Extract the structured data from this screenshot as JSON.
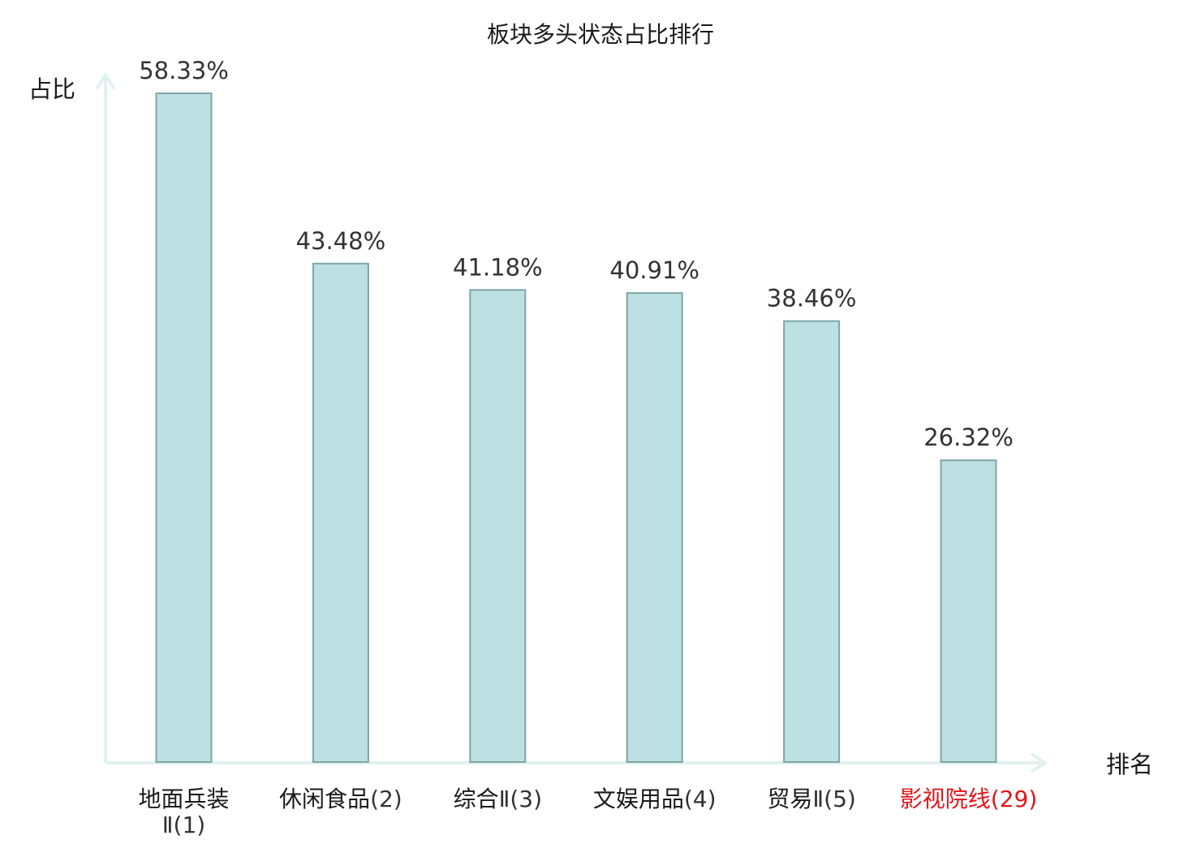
{
  "chart_data": {
    "type": "bar",
    "title": "板块多头状态占比排行",
    "ylabel": "占比",
    "xlabel": "排名",
    "ylim": [
      0,
      60
    ],
    "grid": false,
    "bar_color": "#bde0e2",
    "bar_border_color": "#7fa5a8",
    "axis_color": "#e0f2ef",
    "label_color": "#1a1a1a",
    "rank_color": "#333333",
    "highlight_color": "#e0161b",
    "categories": [
      {
        "name": "地面兵装",
        "rank": "Ⅱ(1)",
        "wrap": true,
        "highlight": false
      },
      {
        "name": "休闲食品",
        "rank": "(2)",
        "wrap": false,
        "highlight": false
      },
      {
        "name": "综合",
        "rank": "Ⅱ(3)",
        "wrap": false,
        "highlight": false
      },
      {
        "name": "文娱用品",
        "rank": "(4)",
        "wrap": false,
        "highlight": false
      },
      {
        "name": "贸易",
        "rank": "Ⅱ(5)",
        "wrap": false,
        "highlight": false
      },
      {
        "name": "影视院线",
        "rank": "(29)",
        "wrap": false,
        "highlight": true
      }
    ],
    "values": [
      58.33,
      43.48,
      41.18,
      40.91,
      38.46,
      26.32
    ],
    "value_labels": [
      "58.33%",
      "43.48%",
      "41.18%",
      "40.91%",
      "38.46%",
      "26.32%"
    ]
  }
}
